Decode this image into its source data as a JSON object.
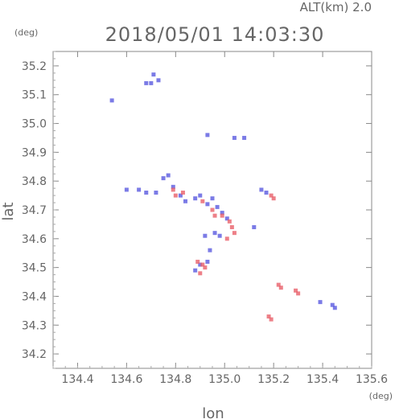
{
  "header": {
    "alt_label": "ALT(km) 2.0",
    "timestamp": "2018/05/01 14:03:30",
    "lat_unit": "(deg)",
    "lon_unit": "(deg)"
  },
  "chart_data": {
    "type": "scatter",
    "title": "2018/05/01 14:03:30",
    "xlabel": "lon",
    "ylabel": "lat",
    "xlim": [
      134.3,
      135.6
    ],
    "ylim": [
      34.15,
      35.25
    ],
    "x_ticks": [
      "134.4",
      "134.6",
      "134.8",
      "135.0",
      "135.2",
      "135.4",
      "135.6"
    ],
    "y_ticks": [
      "34.2",
      "34.3",
      "34.4",
      "34.5",
      "34.6",
      "34.7",
      "34.8",
      "34.9",
      "35.0",
      "35.1",
      "35.2"
    ],
    "colors": {
      "positive": "#e8606a",
      "negative": "#5a5ae0",
      "axis": "#888888"
    },
    "series": [
      {
        "points": [
          [
            134.54,
            35.08
          ],
          [
            134.68,
            35.14
          ],
          [
            134.7,
            35.14
          ],
          [
            134.71,
            35.17
          ],
          [
            134.73,
            35.15
          ],
          [
            134.6,
            34.77
          ],
          [
            134.65,
            34.77
          ],
          [
            134.68,
            34.76
          ],
          [
            134.72,
            34.76
          ],
          [
            134.75,
            34.81
          ],
          [
            134.77,
            34.82
          ],
          [
            134.79,
            34.78
          ],
          [
            134.82,
            34.75
          ],
          [
            134.84,
            34.73
          ],
          [
            134.88,
            34.74
          ],
          [
            134.9,
            34.75
          ],
          [
            134.93,
            34.72
          ],
          [
            134.95,
            34.74
          ],
          [
            134.97,
            34.71
          ],
          [
            134.99,
            34.69
          ],
          [
            135.01,
            34.67
          ],
          [
            134.92,
            34.61
          ],
          [
            134.96,
            34.62
          ],
          [
            134.98,
            34.61
          ],
          [
            135.12,
            34.64
          ],
          [
            134.93,
            34.96
          ],
          [
            135.04,
            34.95
          ],
          [
            135.08,
            34.95
          ],
          [
            135.15,
            34.77
          ],
          [
            135.17,
            34.76
          ],
          [
            134.88,
            34.49
          ],
          [
            134.9,
            34.51
          ],
          [
            134.93,
            34.52
          ],
          [
            134.94,
            34.56
          ],
          [
            135.39,
            34.38
          ],
          [
            135.45,
            34.36
          ],
          [
            135.44,
            34.37
          ]
        ]
      },
      {
        "points": [
          [
            134.79,
            34.77
          ],
          [
            134.8,
            34.75
          ],
          [
            134.83,
            34.76
          ],
          [
            134.91,
            34.73
          ],
          [
            134.95,
            34.7
          ],
          [
            134.96,
            34.68
          ],
          [
            134.99,
            34.68
          ],
          [
            135.02,
            34.66
          ],
          [
            135.03,
            34.64
          ],
          [
            135.04,
            34.62
          ],
          [
            135.01,
            34.6
          ],
          [
            134.89,
            34.52
          ],
          [
            134.91,
            34.51
          ],
          [
            134.92,
            34.5
          ],
          [
            134.9,
            34.48
          ],
          [
            135.19,
            34.75
          ],
          [
            135.2,
            34.74
          ],
          [
            135.22,
            34.44
          ],
          [
            135.23,
            34.43
          ],
          [
            135.29,
            34.42
          ],
          [
            135.3,
            34.41
          ],
          [
            135.18,
            34.33
          ],
          [
            135.19,
            34.32
          ]
        ]
      }
    ]
  }
}
